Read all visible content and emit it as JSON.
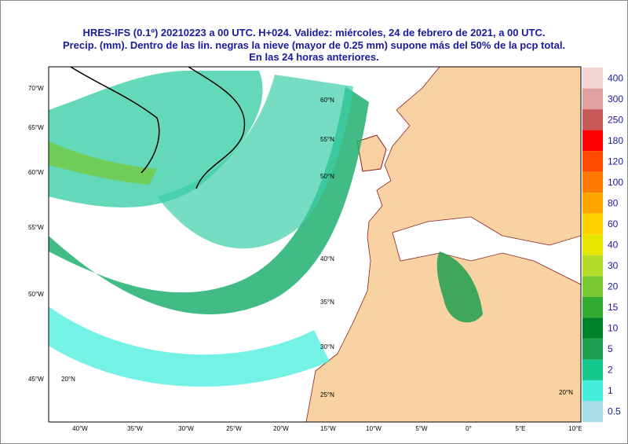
{
  "header": {
    "title_lines": [
      "HRES-IFS (0.1º) 20210223 a 00 UTC.  H+024. Validez: miércoles, 24 de febrero de 2021,  a  00 UTC.",
      "Precip. (mm). Dentro de las lin. negras la nieve (mayor de 0.25 mm) supone más del 50% de la pcp total.",
      "En las 24 horas anteriores."
    ]
  },
  "colorbar": {
    "labels": [
      400,
      300,
      250,
      180,
      120,
      100,
      80,
      60,
      40,
      30,
      20,
      15,
      10,
      5,
      2,
      1,
      0.5
    ],
    "colors": [
      "#f2d2d2",
      "#e0a0a0",
      "#c85a5a",
      "#ff0000",
      "#ff4a00",
      "#ff7a00",
      "#ffa500",
      "#ffd200",
      "#e6e600",
      "#b4dc28",
      "#78c832",
      "#32aa32",
      "#00822a",
      "#1ea050",
      "#14c88c",
      "#46eedc",
      "#aadce6"
    ]
  },
  "axes": {
    "lon_labels": [
      "40°W",
      "35°W",
      "30°W",
      "25°W",
      "20°W",
      "15°W",
      "10°W",
      "5°W",
      "0°",
      "5°E",
      "10°E"
    ],
    "lat_labels": [
      "70°W",
      "65°W",
      "60°W",
      "55°W",
      "50°W",
      "45°W"
    ],
    "grid_labels": [
      "60°N",
      "55°N",
      "50°N",
      "40°N",
      "35°N",
      "30°N",
      "25°N",
      "20°N",
      "20°N"
    ]
  }
}
